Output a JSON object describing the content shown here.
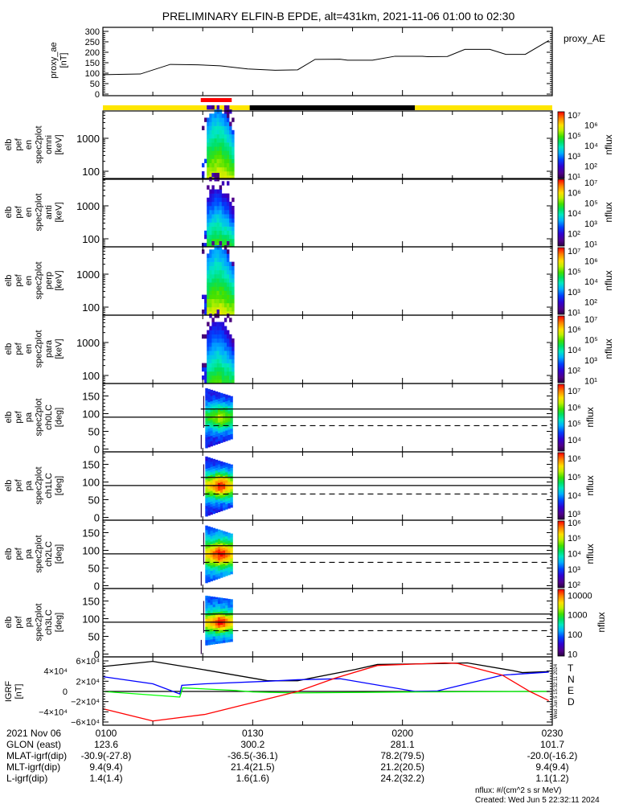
{
  "title": "PRELIMINARY ELFIN-B EPDE, alt=431km, 2021-11-06 01:00 to 02:30",
  "colors": {
    "day": "#ffe600",
    "night": "#000000",
    "science_zone": "#ff0000",
    "T": "#000000",
    "N": "#0000ff",
    "E": "#00ff00",
    "D": "#ff0000"
  },
  "chart_data": {
    "type": "spectrogram",
    "time_axis": {
      "start": "01:00",
      "end": "02:30",
      "unit": "minutes after 01:00",
      "range": [
        0,
        90
      ],
      "minor_step_min": 10
    },
    "proxy_ae": {
      "type": "line",
      "ylabel_lines": [
        "proxy_ae",
        "[nT]"
      ],
      "legend": "proxy_AE",
      "ylim": [
        0,
        300
      ],
      "yticks": [
        "0",
        "50",
        "100",
        "150",
        "200",
        "250",
        "300"
      ],
      "t": [
        0,
        7.5,
        13.5,
        19,
        23.5,
        29,
        34.5,
        39,
        42.5,
        47.5,
        49,
        54,
        58.5,
        64,
        65,
        69,
        72.5,
        77.5,
        80.7,
        84.6,
        89.3
      ],
      "v": [
        93,
        96,
        142,
        140,
        135,
        120,
        114,
        116,
        166,
        167,
        162,
        162,
        181,
        181,
        179,
        180,
        214,
        214,
        190,
        190,
        256
      ]
    },
    "status_bars": {
      "science_zone": [
        {
          "start": 19.6,
          "end": 25.8
        }
      ],
      "day_night": [
        {
          "start": 0,
          "end": 29.4,
          "state": "day"
        },
        {
          "start": 29.4,
          "end": 62.5,
          "state": "night"
        },
        {
          "start": 62.5,
          "end": 90,
          "state": "day"
        }
      ]
    },
    "spectrograms": [
      {
        "kind": "energy",
        "ylabel_lines": [
          "elb",
          "pef",
          "en",
          "spec2plot",
          "omni",
          "[keV]"
        ],
        "yticks": [
          "100",
          "1000"
        ],
        "ylim_keV": [
          56,
          7000
        ],
        "cbar_range_log": [
          0.8,
          7.3
        ],
        "cbar_ticks": [
          "10⁷",
          "10⁶",
          "10⁵",
          "10⁴",
          "10³",
          "10²",
          "10¹"
        ],
        "cbar_tick_logs": [
          7,
          6,
          5,
          4,
          3,
          2,
          1
        ],
        "cbar_label": "nflux",
        "model": {
          "base": 0.7,
          "cutoff_log": 3.8
        }
      },
      {
        "kind": "energy",
        "ylabel_lines": [
          "elb",
          "pef",
          "en",
          "spec2plot",
          "anti",
          "[keV]"
        ],
        "yticks": [
          "100",
          "1000"
        ],
        "ylim_keV": [
          56,
          7000
        ],
        "cbar_range_log": [
          0.8,
          7.3
        ],
        "cbar_ticks": [
          "10⁷",
          "10⁶",
          "10⁵",
          "10⁴",
          "10³",
          "10²",
          "10¹"
        ],
        "cbar_tick_logs": [
          7,
          6,
          5,
          4,
          3,
          2,
          1
        ],
        "cbar_label": "nflux",
        "model": {
          "base": 0.56,
          "cutoff_log": 3.45
        }
      },
      {
        "kind": "energy",
        "ylabel_lines": [
          "elb",
          "pef",
          "en",
          "spec2plot",
          "perp",
          "[keV]"
        ],
        "yticks": [
          "100",
          "1000"
        ],
        "ylim_keV": [
          56,
          7000
        ],
        "cbar_range_log": [
          0.8,
          7.3
        ],
        "cbar_ticks": [
          "10⁷",
          "10⁶",
          "10⁵",
          "10⁴",
          "10³",
          "10²",
          "10¹"
        ],
        "cbar_tick_logs": [
          7,
          6,
          5,
          4,
          3,
          2,
          1
        ],
        "cbar_label": "nflux",
        "model": {
          "base": 0.7,
          "cutoff_log": 3.8
        }
      },
      {
        "kind": "energy",
        "ylabel_lines": [
          "elb",
          "pef",
          "en",
          "spec2plot",
          "para",
          "[keV]"
        ],
        "yticks": [
          "100",
          "1000"
        ],
        "ylim_keV": [
          56,
          7000
        ],
        "cbar_range_log": [
          0.8,
          7.3
        ],
        "cbar_ticks": [
          "10⁷",
          "10⁶",
          "10⁵",
          "10⁴",
          "10³",
          "10²",
          "10¹"
        ],
        "cbar_tick_logs": [
          7,
          6,
          5,
          4,
          3,
          2,
          1
        ],
        "cbar_label": "nflux",
        "model": {
          "base": 0.56,
          "cutoff_log": 3.6
        }
      },
      {
        "kind": "pa",
        "ylabel_lines": [
          "elb",
          "pef",
          "pa",
          "spec2plot",
          "ch0LC",
          "[deg]"
        ],
        "yticks": [
          "0",
          "50",
          "100",
          "150"
        ],
        "ylim_deg": [
          0,
          180
        ],
        "lines_deg": {
          "solid_full": 90,
          "solid_right": 113,
          "dashed_right": 66
        },
        "cbar_range_log": [
          3.3,
          7.4
        ],
        "cbar_ticks": [
          "10⁷",
          "10⁶",
          "10⁵",
          "10⁴"
        ],
        "cbar_tick_logs": [
          7,
          6,
          5,
          4
        ],
        "cbar_label": "nflux",
        "model": {
          "edge": 0.22,
          "peak": 0.72,
          "pa_lo": 3,
          "pa_hi": 172
        }
      },
      {
        "kind": "pa",
        "ylabel_lines": [
          "elb",
          "pef",
          "pa",
          "spec2plot",
          "ch1LC",
          "[deg]"
        ],
        "yticks": [
          "0",
          "50",
          "100",
          "150"
        ],
        "ylim_deg": [
          0,
          180
        ],
        "lines_deg": {
          "solid_full": 90,
          "solid_right": 113,
          "dashed_right": 66
        },
        "cbar_range_log": [
          2.7,
          6.3
        ],
        "cbar_ticks": [
          "10⁶",
          "10⁵",
          "10⁴",
          "10³"
        ],
        "cbar_tick_logs": [
          6,
          5,
          4,
          3
        ],
        "cbar_label": "nflux",
        "model": {
          "edge": 0.22,
          "peak": 0.98,
          "pa_lo": 3,
          "pa_hi": 172
        }
      },
      {
        "kind": "pa",
        "ylabel_lines": [
          "elb",
          "pef",
          "pa",
          "spec2plot",
          "ch2LC",
          "[deg]"
        ],
        "yticks": [
          "0",
          "50",
          "100",
          "150"
        ],
        "ylim_deg": [
          0,
          180
        ],
        "lines_deg": {
          "solid_full": 90,
          "solid_right": 113,
          "dashed_right": 66
        },
        "cbar_range_log": [
          1.8,
          6.1
        ],
        "cbar_ticks": [
          "10⁶",
          "10⁵",
          "10⁴",
          "10³",
          "10²"
        ],
        "cbar_tick_logs": [
          6,
          5,
          4,
          3,
          2
        ],
        "cbar_label": "nflux",
        "model": {
          "edge": 0.3,
          "peak": 1.0,
          "pa_lo": 8,
          "pa_hi": 170
        }
      },
      {
        "kind": "pa",
        "ylabel_lines": [
          "elb",
          "pef",
          "pa",
          "spec2plot",
          "ch3LC",
          "[deg]"
        ],
        "yticks": [
          "0",
          "50",
          "100",
          "150"
        ],
        "ylim_deg": [
          0,
          180
        ],
        "lines_deg": {
          "solid_full": 90,
          "solid_right": 113,
          "dashed_right": 66
        },
        "cbar_range_log": [
          0.9,
          4.3
        ],
        "cbar_ticks": [
          "10000",
          "1000",
          "100",
          "10"
        ],
        "cbar_tick_logs": [
          4,
          3,
          2,
          1
        ],
        "cbar_label": "nflux",
        "model": {
          "edge": 0.3,
          "peak": 1.0,
          "pa_lo": 25,
          "pa_hi": 165
        }
      }
    ],
    "igrf": {
      "type": "line",
      "ylabel_lines": [
        "IGRF",
        "[nT]"
      ],
      "ylim": [
        -65000,
        65000
      ],
      "yticks": [
        {
          "v": 60000,
          "label": "6×10⁴"
        },
        {
          "v": 40000,
          "label": "4×10⁴"
        },
        {
          "v": 20000,
          "label": "2×10⁴"
        },
        {
          "v": 0,
          "label": "0"
        },
        {
          "v": -20000,
          "label": "−2×10⁴"
        },
        {
          "v": -40000,
          "label": "−4×10⁴"
        },
        {
          "v": -60000,
          "label": "−6×10⁴"
        }
      ],
      "series": [
        {
          "name": "T",
          "color_key": "T",
          "t": [
            0,
            10,
            20,
            33,
            39,
            50.5,
            55,
            68.5,
            73,
            82,
            84,
            89.3
          ],
          "v": [
            49000,
            59000,
            43000,
            21000,
            21000,
            43000,
            53000,
            55000,
            56000,
            41000,
            37000,
            39000
          ]
        },
        {
          "name": "N",
          "color_key": "N",
          "t": [
            0,
            10,
            15.4,
            15.8,
            20.5,
            33,
            39,
            47.5,
            62.5,
            67,
            80,
            89.3
          ],
          "v": [
            29000,
            15000,
            -5000,
            12000,
            15000,
            20000,
            23000,
            25000,
            0,
            1000,
            32000,
            38000
          ]
        },
        {
          "name": "E",
          "color_key": "E",
          "t": [
            0,
            15.4,
            16,
            26.5,
            30,
            38.5,
            62.5,
            86,
            89.3
          ],
          "v": [
            0,
            -11000,
            7000,
            2000,
            -1000,
            -3000,
            -1000,
            0,
            0
          ]
        },
        {
          "name": "D",
          "color_key": "D",
          "t": [
            0,
            10,
            20.5,
            39,
            46.5,
            55,
            57.5,
            68.5,
            71,
            80,
            85.5,
            89.3
          ],
          "v": [
            -34000,
            -58000,
            -45000,
            0,
            26000,
            51000,
            52000,
            56000,
            55000,
            32000,
            0,
            -18000
          ]
        }
      ],
      "side_stamp": "Wed Jun  5 15:32:11 2024"
    }
  },
  "ephemeris": {
    "time_row": {
      "label": "2021 Nov 06",
      "values": [
        "0100",
        "0130",
        "0200",
        "0230"
      ]
    },
    "rows": [
      {
        "label": "GLON (east)",
        "values": [
          "123.6",
          "300.2",
          "281.1",
          "101.7"
        ]
      },
      {
        "label": "MLAT-igrf(dip)",
        "values": [
          "-30.9(-27.8)",
          "-36.5(-36.1)",
          "78.2(79.5)",
          "-20.0(-16.2)"
        ]
      },
      {
        "label": "MLT-igrf(dip)",
        "values": [
          "9.4(9.4)",
          "21.4(21.5)",
          "21.2(20.5)",
          "9.4(9.4)"
        ]
      },
      {
        "label": "L-igrf(dip)",
        "values": [
          "1.4(1.4)",
          "1.6(1.6)",
          "24.2(32.2)",
          "1.1(1.2)"
        ]
      }
    ]
  },
  "footer": {
    "units": "nflux: #/(cm^2 s sr MeV)",
    "created": "Created: Wed Jun  5 22:32:11 2024"
  }
}
